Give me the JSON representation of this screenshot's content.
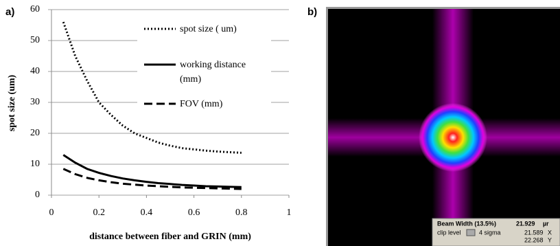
{
  "chart_data": {
    "type": "line",
    "panel_label": "a)",
    "xlabel": "distance between fiber and GRIN (mm)",
    "ylabel": "spot size (um)",
    "x": [
      0.05,
      0.1,
      0.15,
      0.2,
      0.25,
      0.3,
      0.35,
      0.4,
      0.45,
      0.5,
      0.55,
      0.6,
      0.65,
      0.7,
      0.75,
      0.8
    ],
    "series": [
      {
        "name": "spot size  ( um)",
        "color": "#000000",
        "dash": "dotted",
        "values": [
          56,
          45,
          37,
          30,
          26,
          22.5,
          20,
          18.5,
          17,
          16,
          15.2,
          14.8,
          14.4,
          14.1,
          13.9,
          13.7
        ]
      },
      {
        "name": "working distance (mm)",
        "color": "#000000",
        "dash": "solid",
        "values": [
          13,
          10.5,
          8.5,
          7.2,
          6.2,
          5.4,
          4.8,
          4.3,
          3.9,
          3.6,
          3.3,
          3.1,
          2.9,
          2.8,
          2.7,
          2.6
        ]
      },
      {
        "name": "FOV (mm)",
        "color": "#000000",
        "dash": "dashed",
        "values": [
          8.5,
          6.8,
          5.6,
          4.8,
          4.2,
          3.7,
          3.4,
          3.1,
          2.9,
          2.7,
          2.5,
          2.4,
          2.3,
          2.2,
          2.1,
          2.0
        ]
      }
    ],
    "xlim": [
      0,
      1
    ],
    "xticks": [
      0,
      0.2,
      0.4,
      0.6,
      0.8,
      1
    ],
    "ylim": [
      0,
      60
    ],
    "yticks": [
      0,
      10,
      20,
      30,
      40,
      50,
      60
    ],
    "grid": true,
    "legend": "upper right"
  },
  "beam_panel": {
    "panel_label": "b)",
    "beam_width_label": "Beam Width (13.5%)",
    "beam_width_value": "21.929",
    "unit": "µr",
    "clip_label": "clip level",
    "clip_value": "4 sigma",
    "x_value": "21.589",
    "x_axis": "X",
    "y_value": "22.268",
    "y_axis": "Y"
  }
}
